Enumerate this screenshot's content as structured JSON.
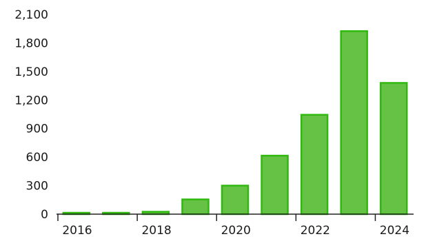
{
  "chart_data": {
    "type": "bar",
    "categories": [
      "2016",
      "2017",
      "2018",
      "2019",
      "2020",
      "2021",
      "2022",
      "2023",
      "2024"
    ],
    "values": [
      0,
      5,
      25,
      155,
      300,
      615,
      1045,
      1925,
      1380
    ],
    "x_tick_labels": [
      "2016",
      "2018",
      "2020",
      "2022",
      "2024"
    ],
    "y_ticks": [
      "0",
      "300",
      "600",
      "900",
      "1,200",
      "1,500",
      "1,800",
      "2,100"
    ],
    "y_tick_values": [
      0,
      300,
      600,
      900,
      1200,
      1500,
      1800,
      2100
    ],
    "ylim": [
      0,
      2100
    ],
    "grid": false,
    "bar_fill": "#66c244",
    "bar_stroke": "#2fb80e"
  }
}
